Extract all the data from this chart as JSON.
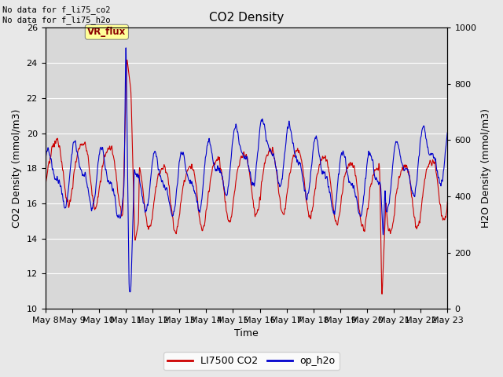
{
  "title": "CO2 Density",
  "xlabel": "Time",
  "ylabel_left": "CO2 Density (mmol/m3)",
  "ylabel_right": "H2O Density (mmol/m3)",
  "ylim_left": [
    10,
    26
  ],
  "ylim_right": [
    0,
    1000
  ],
  "xlim": [
    0,
    15
  ],
  "xtick_labels": [
    "May 8",
    "May 9",
    "May 10",
    "May 11",
    "May 12",
    "May 13",
    "May 14",
    "May 15",
    "May 16",
    "May 17",
    "May 18",
    "May 19",
    "May 20",
    "May 21",
    "May 22",
    "May 23"
  ],
  "xtick_positions": [
    0,
    1,
    2,
    3,
    4,
    5,
    6,
    7,
    8,
    9,
    10,
    11,
    12,
    13,
    14,
    15
  ],
  "annotation_text": "No data for f_li75_co2\nNo data for f_li75_h2o",
  "box_text": "VR_flux",
  "legend_labels": [
    "LI7500 CO2",
    "op_h2o"
  ],
  "legend_colors": [
    "#cc0000",
    "#0000cc"
  ],
  "fig_facecolor": "#e8e8e8",
  "plot_facecolor": "#d8d8d8",
  "grid_color": "#ffffff",
  "co2_color": "#cc0000",
  "h2o_color": "#0000cc",
  "title_fontsize": 11,
  "axis_label_fontsize": 9,
  "tick_fontsize": 8,
  "legend_fontsize": 9
}
